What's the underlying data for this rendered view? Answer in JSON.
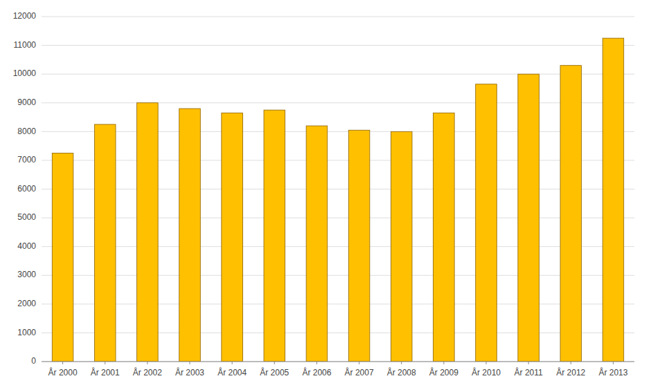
{
  "chart_data": {
    "type": "bar",
    "categories": [
      "År 2000",
      "År 2001",
      "År 2002",
      "År 2003",
      "År 2004",
      "År 2005",
      "År 2006",
      "År 2007",
      "År 2008",
      "År 2009",
      "År 2010",
      "År 2011",
      "År 2012",
      "År 2013"
    ],
    "values": [
      7250,
      8250,
      9000,
      8800,
      8650,
      8750,
      8200,
      8050,
      8000,
      8650,
      9650,
      10000,
      10300,
      11250
    ],
    "color": "#FFC000",
    "ylim": [
      0,
      12000
    ],
    "yticks": [
      0,
      1000,
      2000,
      3000,
      4000,
      5000,
      6000,
      7000,
      8000,
      9000,
      10000,
      11000,
      12000
    ],
    "grid": true
  }
}
